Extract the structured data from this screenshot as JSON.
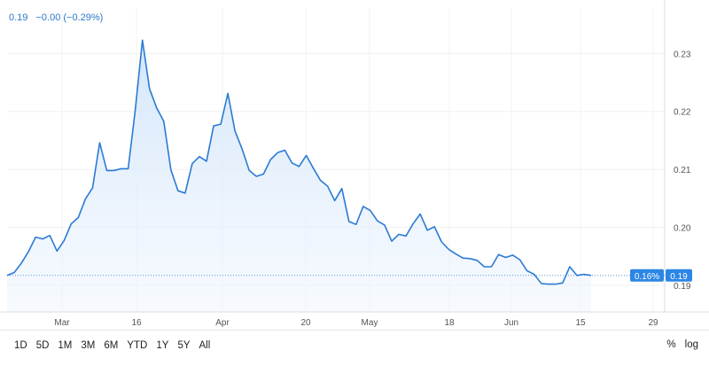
{
  "ticker": {
    "price": "0.19",
    "change": "−0.00 (−0.29%)"
  },
  "toolbar": {
    "ranges": [
      "1D",
      "5D",
      "1M",
      "3M",
      "6M",
      "YTD",
      "1Y",
      "5Y",
      "All"
    ],
    "percent_label": "%",
    "log_label": "log"
  },
  "price_tags": {
    "percent": "0.16%",
    "last": "0.19"
  },
  "colors": {
    "line": "#2a7bd3",
    "fill": "#dcebfb",
    "tag": "#2b86e6"
  },
  "chart_data": {
    "type": "area",
    "title": "",
    "xlabel": "",
    "ylabel": "",
    "ylim": [
      0.1854,
      0.238
    ],
    "x_ticks": [
      "Mar",
      "16",
      "Apr",
      "20",
      "May",
      "18",
      "Jun",
      "15",
      "29"
    ],
    "y_ticks": [
      "0.23",
      "0.22",
      "0.21",
      "0.20",
      "0.19"
    ],
    "grid": true,
    "series": [
      {
        "values": [
          0.1917,
          0.1922,
          0.1938,
          0.1958,
          0.1983,
          0.198,
          0.1986,
          0.1959,
          0.1977,
          0.2006,
          0.2017,
          0.2049,
          0.2068,
          0.2146,
          0.2098,
          0.2098,
          0.2101,
          0.2101,
          0.2203,
          0.2323,
          0.2239,
          0.2206,
          0.2183,
          0.2099,
          0.2063,
          0.2059,
          0.211,
          0.2122,
          0.2114,
          0.2175,
          0.2178,
          0.2231,
          0.2166,
          0.2135,
          0.2098,
          0.2088,
          0.2092,
          0.2117,
          0.2129,
          0.2133,
          0.2111,
          0.2105,
          0.2124,
          0.2102,
          0.2081,
          0.2071,
          0.2046,
          0.2067,
          0.201,
          0.2005,
          0.2036,
          0.2029,
          0.2011,
          0.2004,
          0.1976,
          0.1988,
          0.1985,
          0.2006,
          0.2023,
          0.1995,
          0.2001,
          0.1975,
          0.1962,
          0.1954,
          0.1947,
          0.1946,
          0.1943,
          0.1932,
          0.1932,
          0.1953,
          0.1948,
          0.1952,
          0.1944,
          0.1925,
          0.1919,
          0.1903,
          0.1902,
          0.1902,
          0.1904,
          0.1932,
          0.1917,
          0.1919,
          0.1917
        ]
      }
    ]
  }
}
